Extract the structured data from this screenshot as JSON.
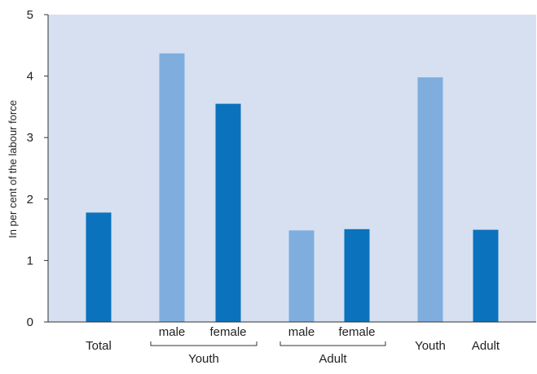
{
  "chart_data": {
    "type": "bar",
    "ylabel": "In per cent of the labour force",
    "ylim": [
      0,
      5
    ],
    "yticks": [
      0,
      1,
      2,
      3,
      4,
      5
    ],
    "grid": false,
    "colors": {
      "light": "#7faede",
      "dark": "#0b72bd",
      "background": "#d6e0f1"
    },
    "bars": [
      {
        "label": "Total",
        "value": 1.78,
        "color": "dark"
      },
      {
        "label": "male",
        "value": 4.37,
        "color": "light"
      },
      {
        "label": "female",
        "value": 3.55,
        "color": "dark"
      },
      {
        "label": "male",
        "value": 1.49,
        "color": "light"
      },
      {
        "label": "female",
        "value": 1.51,
        "color": "dark"
      },
      {
        "label": "Youth",
        "value": 3.98,
        "color": "light"
      },
      {
        "label": "Adult",
        "value": 1.5,
        "color": "dark"
      }
    ],
    "groups": [
      {
        "label": "Youth",
        "from": 1,
        "to": 2
      },
      {
        "label": "Adult",
        "from": 3,
        "to": 4
      }
    ]
  }
}
